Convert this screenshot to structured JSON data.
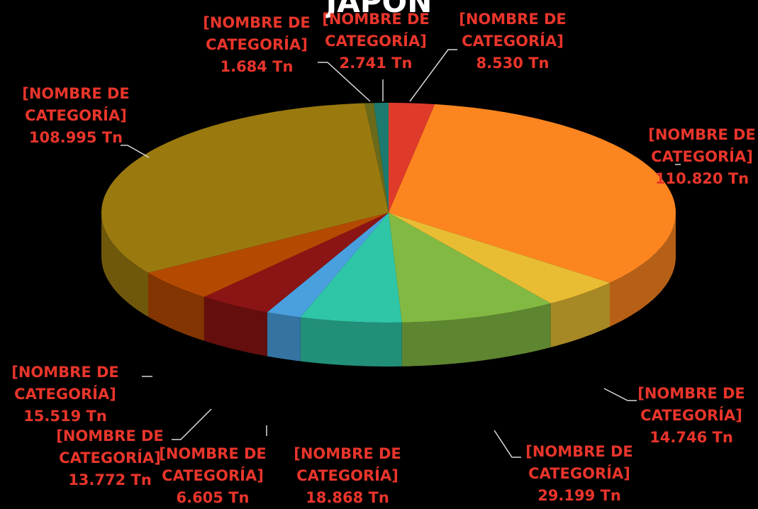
{
  "chart_data": {
    "type": "pie",
    "title": "JAPÓN",
    "categories": [
      "[NOMBRE DE CATEGORÍA]",
      "[NOMBRE DE CATEGORÍA]",
      "[NOMBRE DE CATEGORÍA]",
      "[NOMBRE DE CATEGORÍA]",
      "[NOMBRE DE CATEGORÍA]",
      "[NOMBRE DE CATEGORÍA]",
      "[NOMBRE DE CATEGORÍA]",
      "[NOMBRE DE CATEGORÍA]",
      "[NOMBRE DE CATEGORÍA]",
      "[NOMBRE DE CATEGORÍA]",
      "[NOMBRE DE CATEGORÍA]"
    ],
    "values": [
      8530,
      110820,
      14746,
      29199,
      18868,
      6605,
      13772,
      15519,
      108995,
      1684,
      2741
    ],
    "value_labels": [
      "8.530 Tn",
      "110.820 Tn",
      "14.746 Tn",
      "29.199 Tn",
      "18.868 Tn",
      "6.605 Tn",
      "13.772 Tn",
      "15.519 Tn",
      "108.995 Tn",
      "1.684 Tn",
      "2.741 Tn"
    ],
    "colors": [
      "#e03a2a",
      "#fd8520",
      "#e9bd33",
      "#82b942",
      "#2fc6a7",
      "#4aa0de",
      "#8b1414",
      "#b44a02",
      "#9a7a0f",
      "#6b6a1a",
      "#1c7a6e"
    ]
  }
}
